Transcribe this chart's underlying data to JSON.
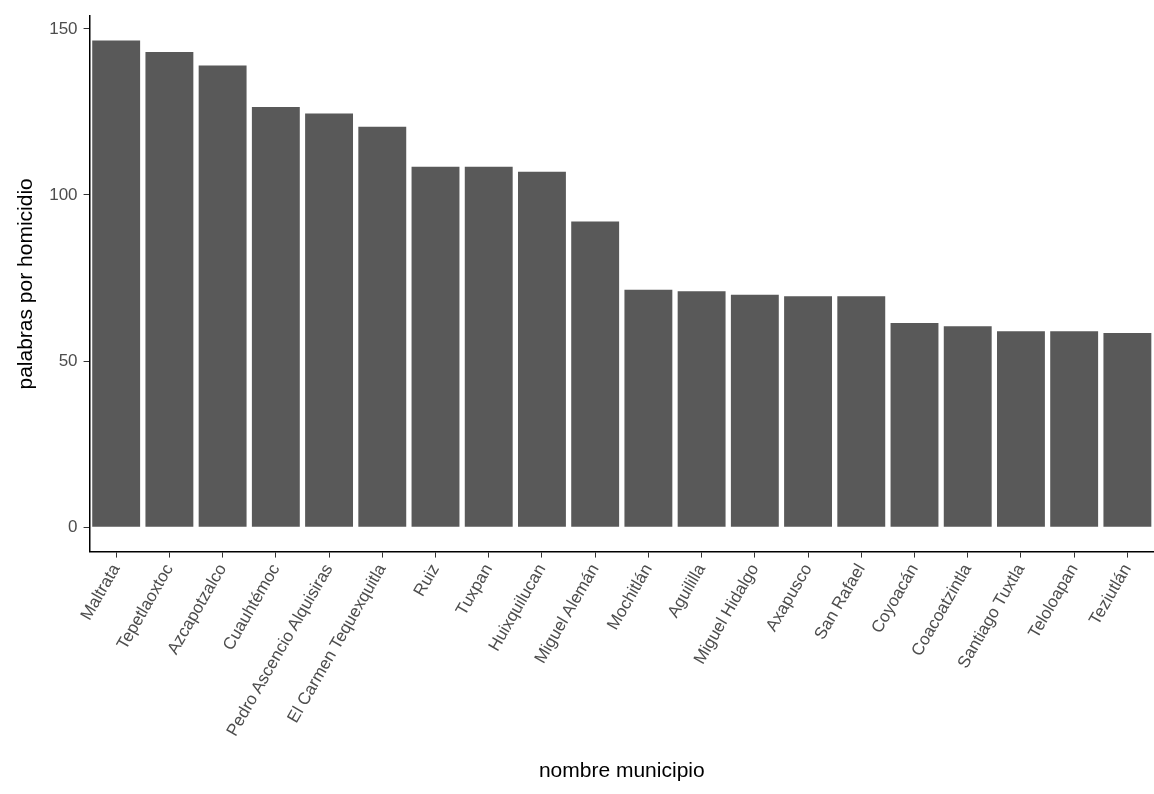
{
  "chart_data": {
    "type": "bar",
    "xlabel": "nombre municipio",
    "ylabel": "palabras por homicidio",
    "categories": [
      "Maltrata",
      "Tepetlaoxtoc",
      "Azcapotzalco",
      "Cuauhtémoc",
      "Pedro Ascencio Alquisiras",
      "El Carmen Tequexquitla",
      "Ruiz",
      "Tuxpan",
      "Huixquilucan",
      "Miguel Alemán",
      "Mochitlán",
      "Aguililla",
      "Miguel Hidalgo",
      "Axapusco",
      "San Rafael",
      "Coyoacán",
      "Coacoatzintla",
      "Santiago Tuxtla",
      "Teloloapan",
      "Teziutlán"
    ],
    "values": [
      146.5,
      143,
      139,
      126.5,
      124.5,
      120.5,
      108.5,
      108.5,
      107,
      92,
      71.5,
      71,
      70,
      69.5,
      69.5,
      61.5,
      60.5,
      59,
      59,
      58.5
    ],
    "color": "#595959",
    "ylim": [
      -7.3,
      153.8
    ],
    "yticks": [
      0,
      50,
      100,
      150
    ]
  }
}
